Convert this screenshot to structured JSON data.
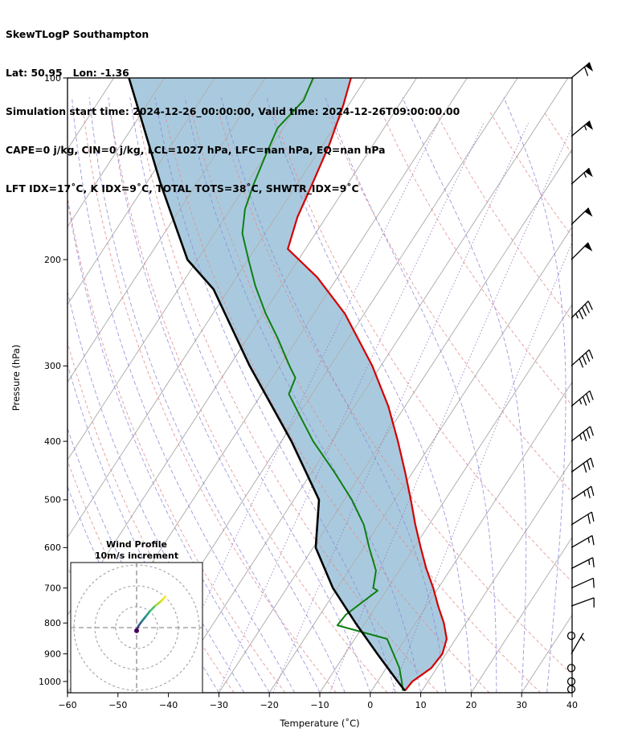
{
  "header": {
    "line1": "SkewTLogP Southampton",
    "line2": "Lat: 50.95   Lon: -1.36",
    "line3": "Simulation start time: 2024-12-26_00:00:00, Valid time: 2024-12-26T09:00:00.00",
    "line4": "CAPE=0 j/kg, CIN=0 j/kg, LCL=1027 hPa, LFC=nan hPa, EQ=nan hPa",
    "line5": "LFT IDX=17˚C, K IDX=9˚C, TOTAL TOTS=38˚C, SHWTR_IDX=9˚C"
  },
  "chart_data": {
    "type": "line",
    "title": "SkewTLogP Southampton",
    "xlabel": "Temperature (˚C)",
    "ylabel": "Pressure (hPa)",
    "x_tick_labels": [
      "−60",
      "−50",
      "−40",
      "−30",
      "−20",
      "−10",
      "0",
      "10",
      "20",
      "30",
      "40"
    ],
    "x_tick_values": [
      -60,
      -50,
      -40,
      -30,
      -20,
      -10,
      0,
      10,
      20,
      30,
      40
    ],
    "y_ticks": [
      100,
      200,
      300,
      400,
      500,
      600,
      700,
      800,
      900,
      1000
    ],
    "xlim": [
      -60,
      40
    ],
    "pressure_lim": [
      100,
      1044
    ],
    "skew_note": "skew-T log-p axes: isotherms tilted up-right (0.65 px horizontal per px vertical), pressure on log scale",
    "grid": true,
    "series": [
      {
        "name": "temperature",
        "label": "Temperature",
        "color": "#d40000",
        "points": [
          [
            1036,
            6.6
          ],
          [
            1000,
            6.9
          ],
          [
            950,
            8.9
          ],
          [
            900,
            9.3
          ],
          [
            850,
            8.2
          ],
          [
            800,
            5.6
          ],
          [
            750,
            2.3
          ],
          [
            700,
            -1.0
          ],
          [
            650,
            -4.9
          ],
          [
            600,
            -8.7
          ],
          [
            550,
            -12.7
          ],
          [
            500,
            -16.8
          ],
          [
            450,
            -21.5
          ],
          [
            400,
            -26.9
          ],
          [
            350,
            -33.3
          ],
          [
            300,
            -41.7
          ],
          [
            246,
            -53.8
          ],
          [
            214,
            -64.0
          ],
          [
            192,
            -73.5
          ],
          [
            170,
            -75.7
          ],
          [
            150,
            -77.0
          ],
          [
            129,
            -78.7
          ],
          [
            111,
            -81.0
          ],
          [
            100,
            -83.0
          ]
        ]
      },
      {
        "name": "dewpoint",
        "label": "Dewpoint",
        "color": "#0e7f12",
        "points": [
          [
            1036,
            6.2
          ],
          [
            1000,
            4.8
          ],
          [
            950,
            2.6
          ],
          [
            900,
            -0.4
          ],
          [
            850,
            -3.6
          ],
          [
            807,
            -15.2
          ],
          [
            775,
            -14.9
          ],
          [
            707,
            -11.7
          ],
          [
            700,
            -12.9
          ],
          [
            655,
            -14.6
          ],
          [
            600,
            -18.9
          ],
          [
            550,
            -22.9
          ],
          [
            500,
            -28.5
          ],
          [
            450,
            -35.5
          ],
          [
            400,
            -43.7
          ],
          [
            360,
            -50.1
          ],
          [
            334,
            -54.6
          ],
          [
            314,
            -55.4
          ],
          [
            300,
            -58.1
          ],
          [
            269,
            -64.2
          ],
          [
            246,
            -69.5
          ],
          [
            221,
            -75.2
          ],
          [
            200,
            -79.9
          ],
          [
            181,
            -84.5
          ],
          [
            165,
            -87.1
          ],
          [
            150,
            -88.6
          ],
          [
            135,
            -89.9
          ],
          [
            121,
            -91.1
          ],
          [
            109,
            -89.5
          ],
          [
            100,
            -90.5
          ]
        ]
      },
      {
        "name": "parcel",
        "label": "Parcel path",
        "color": "#000000",
        "points": [
          [
            1036,
            6.6
          ],
          [
            1000,
            4.0
          ],
          [
            900,
            -3.6
          ],
          [
            800,
            -11.9
          ],
          [
            700,
            -20.9
          ],
          [
            600,
            -29.5
          ],
          [
            500,
            -35.0
          ],
          [
            400,
            -48.0
          ],
          [
            300,
            -66.0
          ],
          [
            224,
            -83.0
          ],
          [
            200,
            -92.0
          ],
          [
            150,
            -107.0
          ],
          [
            100,
            -127.0
          ]
        ]
      }
    ],
    "shading": {
      "name": "cin-area",
      "color": "#a9cade",
      "between": [
        "parcel",
        "temperature"
      ]
    },
    "background": {
      "isotherm_color": "#b0b0b0",
      "isotherms_c": [
        -150,
        -140,
        -130,
        -120,
        -110,
        -100,
        -90,
        -80,
        -70,
        -60,
        -50,
        -40,
        -30,
        -20,
        -10,
        0,
        10,
        20,
        30,
        40
      ],
      "dry_adiabat_color": "#e08a8a",
      "dry_adiabats_theta_c": [
        -60,
        -50,
        -40,
        -30,
        -20,
        -10,
        0,
        10,
        20,
        30,
        40,
        60,
        80,
        100,
        120,
        140,
        160,
        180,
        200,
        220
      ],
      "moist_adiabat_color": "#8a8ad8",
      "moist_adiabats_start_c": [
        -40,
        -35,
        -30,
        -25,
        -20,
        -15,
        -10,
        -5,
        0,
        5,
        10,
        15,
        20,
        25,
        30,
        35,
        40
      ],
      "mixing_ratio_color": "#9b72b8",
      "mixing_ratio_gkg": [
        0.1,
        0.3,
        0.8,
        2,
        5
      ]
    },
    "wind_barbs": [
      {
        "p": 100,
        "kt": 60,
        "dir": 230
      },
      {
        "p": 125,
        "kt": 55,
        "dir": 230
      },
      {
        "p": 150,
        "kt": 55,
        "dir": 228
      },
      {
        "p": 175,
        "kt": 50,
        "dir": 226
      },
      {
        "p": 200,
        "kt": 50,
        "dir": 225
      },
      {
        "p": 250,
        "kt": 45,
        "dir": 225
      },
      {
        "p": 300,
        "kt": 40,
        "dir": 228
      },
      {
        "p": 350,
        "kt": 35,
        "dir": 230
      },
      {
        "p": 400,
        "kt": 35,
        "dir": 232
      },
      {
        "p": 450,
        "kt": 30,
        "dir": 234
      },
      {
        "p": 500,
        "kt": 25,
        "dir": 236
      },
      {
        "p": 550,
        "kt": 20,
        "dir": 238
      },
      {
        "p": 600,
        "kt": 15,
        "dir": 240
      },
      {
        "p": 650,
        "kt": 15,
        "dir": 243
      },
      {
        "p": 700,
        "kt": 10,
        "dir": 246
      },
      {
        "p": 750,
        "kt": 10,
        "dir": 250
      },
      {
        "p": 840,
        "kt": 0,
        "dir": 0
      },
      {
        "p": 900,
        "kt": 5,
        "dir": 210
      },
      {
        "p": 950,
        "kt": 0,
        "dir": 0
      },
      {
        "p": 1000,
        "kt": 0,
        "dir": 0
      },
      {
        "p": 1030,
        "kt": 0,
        "dir": 0
      }
    ],
    "inset": {
      "title_line1": "Wind Profile",
      "title_line2": "10m/s increment",
      "rings_ms": [
        10,
        20,
        30
      ],
      "trace_uv": [
        [
          0,
          -1.5
        ],
        [
          0.3,
          -0.5
        ],
        [
          1,
          1
        ],
        [
          2.5,
          3
        ],
        [
          4.5,
          5.5
        ],
        [
          6.5,
          8
        ],
        [
          9,
          10.5
        ],
        [
          11.5,
          12.5
        ],
        [
          13,
          14
        ],
        [
          13.8,
          14.8
        ]
      ],
      "trace_colors": [
        "#440154",
        "#46327e",
        "#365c8d",
        "#277f8e",
        "#1fa187",
        "#4ac16d",
        "#a0da39",
        "#d8e219",
        "#fde725"
      ]
    }
  }
}
